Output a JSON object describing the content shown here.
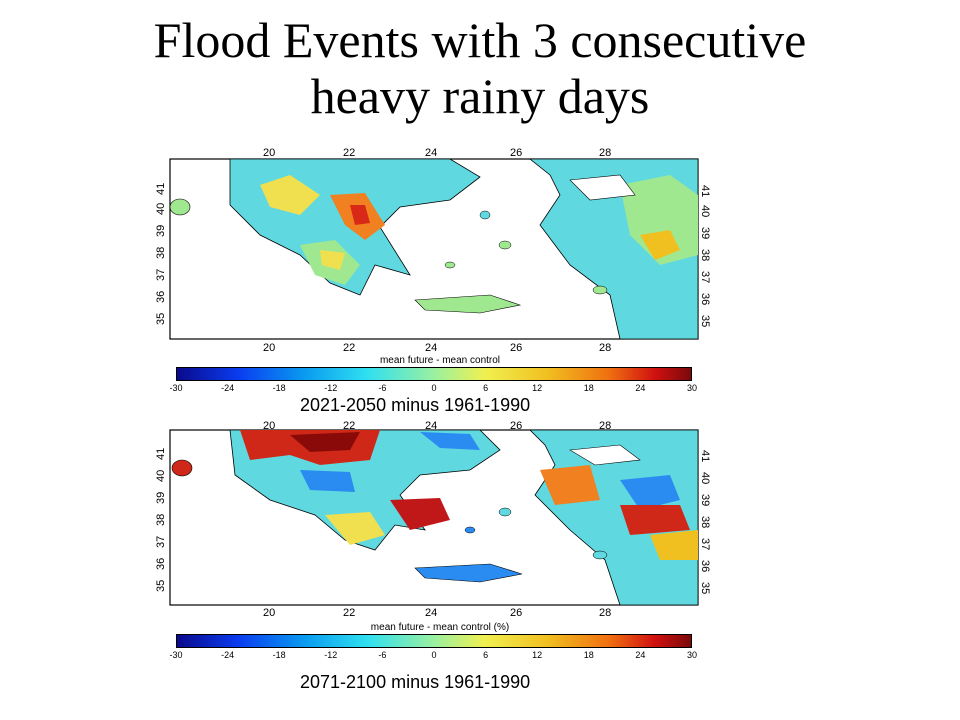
{
  "slide": {
    "title_line1": "Flood Events with 3 consecutive",
    "title_line2": "heavy rainy days"
  },
  "panels": [
    {
      "id": "panel1",
      "colorbar_title": "mean future - mean control",
      "caption": "2021-2050 minus 1961-1990",
      "colorbar_ticks": [
        "-30",
        "-24",
        "-18",
        "-12",
        "-6",
        "0",
        "6",
        "12",
        "18",
        "24",
        "30"
      ]
    },
    {
      "id": "panel2",
      "colorbar_title": "mean future - mean control (%)",
      "caption": "2071-2100 minus 1961-1990",
      "colorbar_ticks": [
        "-30",
        "-24",
        "-18",
        "-12",
        "-6",
        "0",
        "6",
        "12",
        "18",
        "24",
        "30"
      ]
    }
  ],
  "axes": {
    "lon_ticks": [
      "20",
      "22",
      "24",
      "26",
      "28"
    ],
    "lat_ticks": [
      "41",
      "40",
      "39",
      "38",
      "37",
      "36",
      "35"
    ]
  },
  "colors": {
    "cold": "#0a3cf0",
    "neutral": "#9af0a0",
    "warm": "#f07010",
    "hot": "#b01010"
  }
}
